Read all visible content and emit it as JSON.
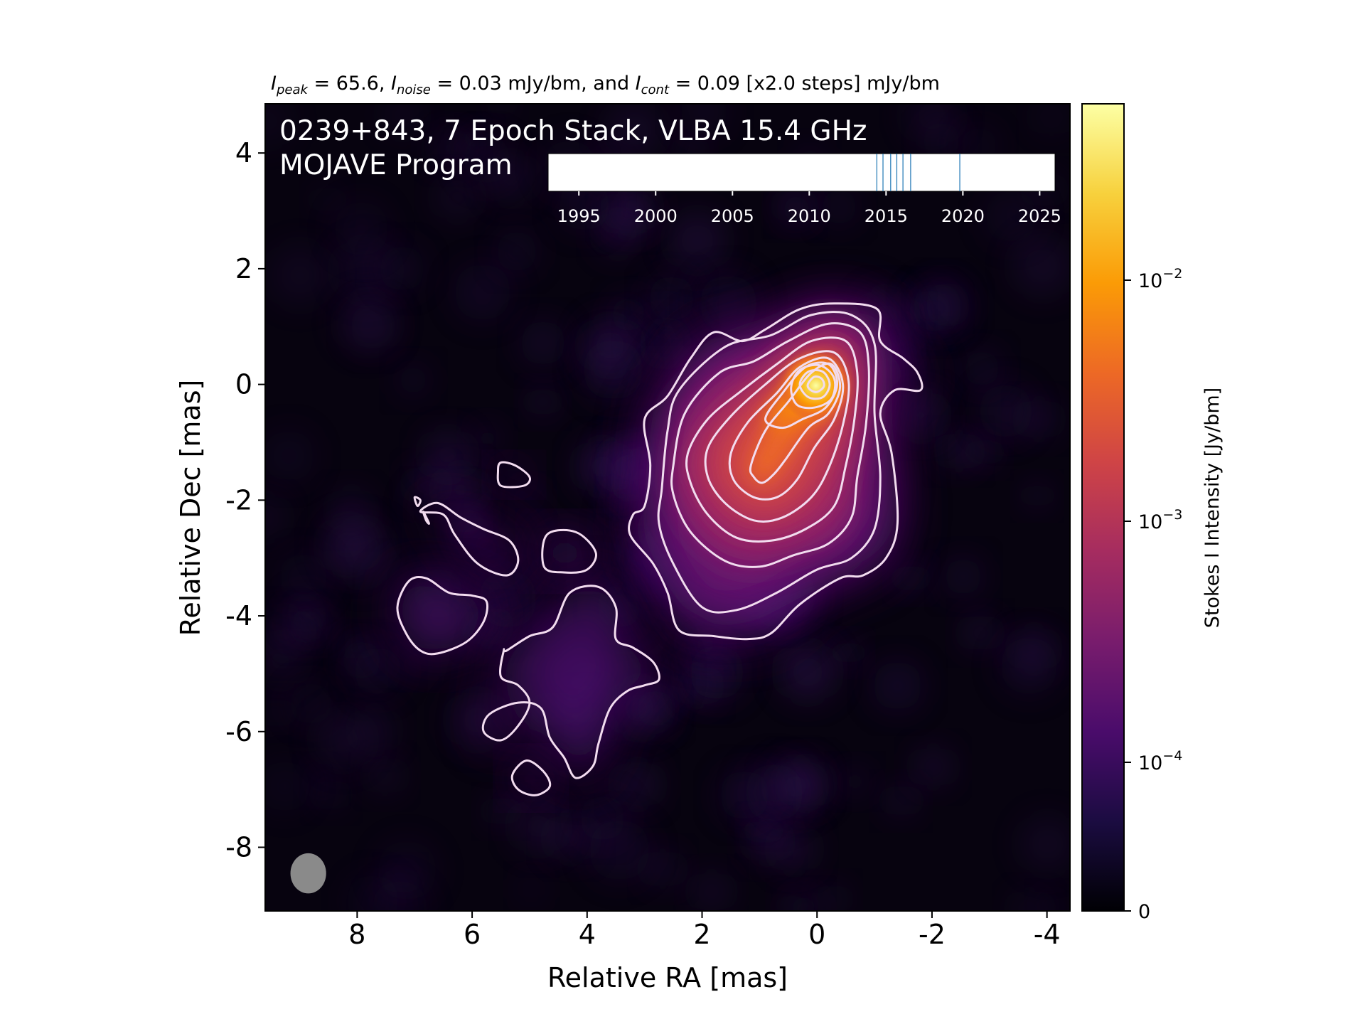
{
  "chart_data": {
    "type": "heatmap",
    "header": {
      "i1": "I",
      "i1_sub": "peak",
      "t1": " = 65.6, ",
      "i2": "I",
      "i2_sub": "noise",
      "t2": " = 0.03 mJy/bm, and ",
      "i3": "I",
      "i3_sub": "cont",
      "t3": " = 0.09 [x2.0 steps] mJy/bm"
    },
    "title_line1": "0239+843, 7 Epoch Stack, VLBA 15.4 GHz",
    "title_line2": "MOJAVE Program",
    "xlabel": "Relative RA [mas]",
    "ylabel": "Relative Dec [mas]",
    "xlim": [
      9.6,
      -4.4
    ],
    "ylim": [
      -9.1,
      4.85
    ],
    "xticks": [
      8,
      6,
      4,
      2,
      0,
      -2,
      -4
    ],
    "xtick_labels": [
      "8",
      "6",
      "4",
      "2",
      "0",
      "-2",
      "-4"
    ],
    "yticks": [
      4,
      2,
      0,
      -2,
      -4,
      -6,
      -8
    ],
    "ytick_labels": [
      "4",
      "2",
      "0",
      "-2",
      "-4",
      "-6",
      "-8"
    ],
    "colorbar": {
      "label": "Stokes I Intensity [Jy/bm]",
      "scale": "log",
      "ticks": [
        {
          "value": 0,
          "label": "0"
        },
        {
          "value": 0.0001,
          "label": "10",
          "exp": "−4"
        },
        {
          "value": 0.001,
          "label": "10",
          "exp": "−3"
        },
        {
          "value": 0.01,
          "label": "10",
          "exp": "−2"
        }
      ],
      "stops": [
        "#000004",
        "#1b0c41",
        "#4a0c6b",
        "#781c6d",
        "#a52c60",
        "#cf4446",
        "#ed6925",
        "#fb9b06",
        "#f7d13d",
        "#fcffa4"
      ]
    },
    "epoch_timeline": {
      "xlim": [
        1993,
        2026
      ],
      "ticks": [
        1995,
        2000,
        2005,
        2010,
        2015,
        2020,
        2025
      ],
      "tick_labels": [
        "1995",
        "2000",
        "2005",
        "2010",
        "2015",
        "2020",
        "2025"
      ],
      "epochs": [
        2014.4,
        2014.8,
        2015.3,
        2015.7,
        2016.1,
        2016.6,
        2019.8
      ],
      "line_color": "#1f77b4"
    },
    "beam": {
      "ra": 8.85,
      "dec": -8.45,
      "major": 0.7,
      "minor": 0.62
    },
    "contours": [
      {
        "level": 1,
        "points": [
          [
            3.0,
            -2.1
          ],
          [
            2.9,
            -1.4
          ],
          [
            3.0,
            -0.6
          ],
          [
            2.6,
            -0.2
          ],
          [
            2.2,
            0.45
          ],
          [
            1.8,
            0.9
          ],
          [
            1.3,
            0.75
          ],
          [
            0.9,
            0.95
          ],
          [
            0.3,
            1.3
          ],
          [
            -0.3,
            1.4
          ],
          [
            -1.05,
            1.3
          ],
          [
            -1.1,
            0.75
          ],
          [
            -1.5,
            0.45
          ],
          [
            -1.75,
            0.2
          ],
          [
            -1.8,
            -0.1
          ],
          [
            -1.35,
            -0.1
          ],
          [
            -1.1,
            -0.5
          ],
          [
            -1.3,
            -1.2
          ],
          [
            -1.4,
            -2.4
          ],
          [
            -1.2,
            -3.0
          ],
          [
            -0.8,
            -3.3
          ],
          [
            -0.4,
            -3.35
          ],
          [
            0.3,
            -3.8
          ],
          [
            0.8,
            -4.3
          ],
          [
            1.2,
            -4.4
          ],
          [
            1.8,
            -4.35
          ],
          [
            2.4,
            -4.25
          ],
          [
            2.6,
            -3.6
          ],
          [
            2.85,
            -3.1
          ],
          [
            3.25,
            -2.6
          ],
          [
            3.2,
            -2.25
          ],
          [
            3.0,
            -2.1
          ]
        ]
      },
      {
        "level": 2,
        "points": [
          [
            2.7,
            -1.8
          ],
          [
            2.6,
            -0.8
          ],
          [
            2.4,
            -0.1
          ],
          [
            1.6,
            0.65
          ],
          [
            0.8,
            0.85
          ],
          [
            0.1,
            1.2
          ],
          [
            -0.6,
            1.2
          ],
          [
            -1.0,
            0.7
          ],
          [
            -1.0,
            -0.5
          ],
          [
            -1.1,
            -1.6
          ],
          [
            -1.0,
            -2.5
          ],
          [
            -0.6,
            -3.0
          ],
          [
            0.0,
            -3.2
          ],
          [
            0.7,
            -3.6
          ],
          [
            1.4,
            -3.9
          ],
          [
            2.0,
            -3.85
          ],
          [
            2.5,
            -3.1
          ],
          [
            2.75,
            -2.4
          ],
          [
            2.7,
            -1.8
          ]
        ]
      },
      {
        "level": 3,
        "points": [
          [
            2.5,
            -1.4
          ],
          [
            2.3,
            -0.5
          ],
          [
            1.7,
            0.2
          ],
          [
            1.1,
            0.4
          ],
          [
            0.5,
            0.75
          ],
          [
            -0.2,
            1.05
          ],
          [
            -0.75,
            0.9
          ],
          [
            -0.9,
            0.3
          ],
          [
            -0.85,
            -0.7
          ],
          [
            -0.7,
            -1.6
          ],
          [
            -0.6,
            -2.3
          ],
          [
            -0.2,
            -2.75
          ],
          [
            0.4,
            -2.95
          ],
          [
            1.0,
            -3.15
          ],
          [
            1.6,
            -3.05
          ],
          [
            2.2,
            -2.55
          ],
          [
            2.5,
            -1.9
          ],
          [
            2.5,
            -1.4
          ]
        ]
      },
      {
        "level": 4,
        "points": [
          [
            2.25,
            -1.2
          ],
          [
            1.9,
            -0.6
          ],
          [
            1.3,
            -0.1
          ],
          [
            0.7,
            0.35
          ],
          [
            0.1,
            0.75
          ],
          [
            -0.5,
            0.75
          ],
          [
            -0.7,
            0.2
          ],
          [
            -0.65,
            -0.6
          ],
          [
            -0.5,
            -1.4
          ],
          [
            -0.3,
            -2.1
          ],
          [
            0.2,
            -2.5
          ],
          [
            0.8,
            -2.7
          ],
          [
            1.4,
            -2.65
          ],
          [
            1.9,
            -2.25
          ],
          [
            2.2,
            -1.7
          ],
          [
            2.25,
            -1.2
          ]
        ]
      },
      {
        "level": 5,
        "points": [
          [
            1.9,
            -1.1
          ],
          [
            1.5,
            -0.55
          ],
          [
            0.9,
            0.0
          ],
          [
            0.3,
            0.45
          ],
          [
            -0.3,
            0.55
          ],
          [
            -0.55,
            0.05
          ],
          [
            -0.45,
            -0.7
          ],
          [
            -0.2,
            -1.45
          ],
          [
            0.1,
            -1.95
          ],
          [
            0.6,
            -2.3
          ],
          [
            1.1,
            -2.35
          ],
          [
            1.6,
            -2.05
          ],
          [
            1.9,
            -1.6
          ],
          [
            1.9,
            -1.1
          ]
        ]
      },
      {
        "level": 6,
        "points": [
          [
            1.5,
            -1.2
          ],
          [
            1.2,
            -0.65
          ],
          [
            0.7,
            -0.15
          ],
          [
            0.3,
            0.3
          ],
          [
            -0.2,
            0.45
          ],
          [
            -0.45,
            0.0
          ],
          [
            -0.3,
            -0.6
          ],
          [
            0.05,
            -1.1
          ],
          [
            0.35,
            -1.65
          ],
          [
            0.7,
            -1.95
          ],
          [
            1.1,
            -1.95
          ],
          [
            1.45,
            -1.65
          ],
          [
            1.5,
            -1.2
          ]
        ]
      },
      {
        "level": 7,
        "points": [
          [
            1.15,
            -1.4
          ],
          [
            0.9,
            -0.8
          ],
          [
            0.5,
            -0.3
          ],
          [
            0.1,
            0.2
          ],
          [
            -0.25,
            0.35
          ],
          [
            -0.4,
            -0.05
          ],
          [
            -0.2,
            -0.5
          ],
          [
            0.15,
            -0.75
          ],
          [
            0.55,
            -1.3
          ],
          [
            0.75,
            -1.55
          ],
          [
            0.95,
            -1.7
          ],
          [
            1.1,
            -1.6
          ],
          [
            1.15,
            -1.4
          ]
        ]
      },
      {
        "level": 8,
        "points": [
          [
            0.9,
            -0.6
          ],
          [
            0.6,
            -0.15
          ],
          [
            0.2,
            0.3
          ],
          [
            -0.2,
            0.35
          ],
          [
            -0.35,
            0.0
          ],
          [
            -0.15,
            -0.4
          ],
          [
            0.25,
            -0.6
          ],
          [
            0.6,
            -0.75
          ],
          [
            0.9,
            -0.6
          ]
        ]
      },
      {
        "level": 9,
        "points": [
          [
            0.45,
            -0.05
          ],
          [
            0.3,
            0.25
          ],
          [
            -0.05,
            0.33
          ],
          [
            -0.3,
            0.1
          ],
          [
            -0.25,
            -0.25
          ],
          [
            0.05,
            -0.4
          ],
          [
            0.35,
            -0.35
          ],
          [
            0.45,
            -0.05
          ]
        ]
      },
      {
        "level": 10,
        "points": [
          [
            0.3,
            0.0
          ],
          [
            0.15,
            0.22
          ],
          [
            -0.1,
            0.22
          ],
          [
            -0.22,
            0.0
          ],
          [
            -0.1,
            -0.22
          ],
          [
            0.15,
            -0.22
          ],
          [
            0.3,
            0.0
          ]
        ]
      },
      {
        "level": 11,
        "points": [
          [
            0.16,
            0.0
          ],
          [
            0.05,
            0.13
          ],
          [
            -0.08,
            0.1
          ],
          [
            -0.12,
            -0.03
          ],
          [
            0.0,
            -0.13
          ],
          [
            0.12,
            -0.09
          ],
          [
            0.16,
            0.0
          ]
        ]
      },
      {
        "level": 1,
        "points": [
          [
            6.9,
            -2.2
          ],
          [
            6.5,
            -2.25
          ],
          [
            6.3,
            -2.6
          ],
          [
            5.9,
            -3.1
          ],
          [
            5.4,
            -3.3
          ],
          [
            5.2,
            -3.05
          ],
          [
            5.35,
            -2.7
          ],
          [
            5.8,
            -2.5
          ],
          [
            6.2,
            -2.3
          ],
          [
            6.6,
            -2.05
          ],
          [
            6.9,
            -2.2
          ]
        ]
      },
      {
        "level": 1,
        "points": [
          [
            7.1,
            -3.4
          ],
          [
            7.3,
            -3.85
          ],
          [
            7.15,
            -4.3
          ],
          [
            6.9,
            -4.6
          ],
          [
            6.6,
            -4.65
          ],
          [
            6.1,
            -4.45
          ],
          [
            5.8,
            -4.1
          ],
          [
            5.75,
            -3.75
          ],
          [
            6.0,
            -3.65
          ],
          [
            6.4,
            -3.6
          ],
          [
            6.8,
            -3.35
          ],
          [
            7.1,
            -3.4
          ]
        ]
      },
      {
        "level": 1,
        "points": [
          [
            4.7,
            -2.6
          ],
          [
            4.2,
            -2.55
          ],
          [
            3.85,
            -2.9
          ],
          [
            4.0,
            -3.2
          ],
          [
            4.4,
            -3.25
          ],
          [
            4.75,
            -3.15
          ],
          [
            4.7,
            -2.6
          ]
        ]
      },
      {
        "level": 1,
        "points": [
          [
            5.4,
            -4.6
          ],
          [
            5.0,
            -4.35
          ],
          [
            4.6,
            -4.2
          ],
          [
            4.3,
            -3.6
          ],
          [
            3.8,
            -3.5
          ],
          [
            3.5,
            -3.85
          ],
          [
            3.5,
            -4.4
          ],
          [
            3.2,
            -4.55
          ],
          [
            2.85,
            -4.8
          ],
          [
            2.75,
            -5.1
          ],
          [
            3.0,
            -5.2
          ],
          [
            3.3,
            -5.3
          ],
          [
            3.6,
            -5.6
          ],
          [
            3.8,
            -6.2
          ],
          [
            3.9,
            -6.6
          ],
          [
            4.2,
            -6.8
          ],
          [
            4.4,
            -6.45
          ],
          [
            4.65,
            -6.1
          ],
          [
            4.8,
            -5.6
          ],
          [
            5.2,
            -5.5
          ],
          [
            5.7,
            -5.7
          ],
          [
            5.8,
            -6.0
          ],
          [
            5.5,
            -6.15
          ],
          [
            5.2,
            -5.9
          ],
          [
            5.0,
            -5.5
          ],
          [
            5.2,
            -5.2
          ],
          [
            5.5,
            -5.05
          ],
          [
            5.45,
            -4.6
          ],
          [
            5.4,
            -4.6
          ]
        ]
      },
      {
        "level": 1,
        "points": [
          [
            5.05,
            -6.5
          ],
          [
            4.75,
            -6.7
          ],
          [
            4.65,
            -6.95
          ],
          [
            4.9,
            -7.1
          ],
          [
            5.2,
            -7.0
          ],
          [
            5.3,
            -6.75
          ],
          [
            5.05,
            -6.5
          ]
        ]
      },
      {
        "level": 1,
        "points": [
          [
            5.5,
            -1.35
          ],
          [
            5.25,
            -1.4
          ],
          [
            5.0,
            -1.6
          ],
          [
            5.1,
            -1.75
          ],
          [
            5.5,
            -1.75
          ],
          [
            5.55,
            -1.5
          ],
          [
            5.5,
            -1.35
          ]
        ]
      },
      {
        "level": 1,
        "points": [
          [
            7.0,
            -1.95
          ],
          [
            6.95,
            -2.1
          ],
          [
            6.9,
            -2.0
          ],
          [
            7.0,
            -1.95
          ]
        ]
      },
      {
        "level": 1,
        "points": [
          [
            6.85,
            -2.2
          ],
          [
            6.75,
            -2.4
          ],
          [
            6.8,
            -2.35
          ],
          [
            6.85,
            -2.2
          ]
        ]
      }
    ]
  }
}
